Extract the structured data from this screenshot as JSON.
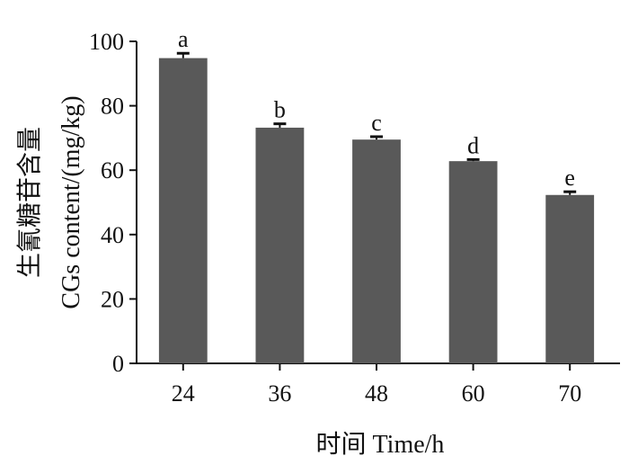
{
  "chart_data": {
    "type": "bar",
    "categories": [
      "24",
      "36",
      "48",
      "60",
      "70"
    ],
    "values": [
      94.8,
      73.2,
      69.5,
      62.8,
      52.3
    ],
    "error": [
      1.5,
      1.2,
      0.9,
      0.5,
      1.0
    ],
    "significance_labels": [
      "a",
      "b",
      "c",
      "d",
      "e"
    ],
    "xlabel": "时间  Time/h",
    "ylabel_line1": "生氰糖苷含量",
    "ylabel_line2": "CGs content/(mg/kg)",
    "ylim": [
      0,
      100
    ],
    "yticks": [
      "0",
      "20",
      "40",
      "60",
      "80",
      "100"
    ],
    "bar_color": "#595959",
    "axis_color": "#111111"
  }
}
